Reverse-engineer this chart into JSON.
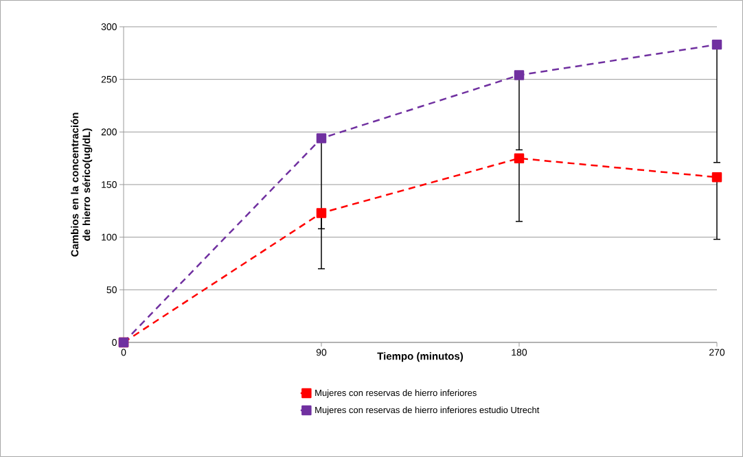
{
  "chart_data": {
    "type": "line",
    "xlabel": "Tiempo (minutos)",
    "ylabel": "Cambios en la concentración de hierro sérico(ug/dL)",
    "x": [
      0,
      90,
      180,
      270
    ],
    "xlim": [
      0,
      270
    ],
    "xticks": [
      0,
      90,
      180,
      270
    ],
    "ylim": [
      0,
      300
    ],
    "yticks": [
      0,
      50,
      100,
      150,
      200,
      250,
      300
    ],
    "grid": "y",
    "legend": "bottom",
    "marker": "square",
    "line_style": "dashed",
    "series": [
      {
        "name": "Mujeres con reservas de hierro inferiores",
        "color": "#ff0000",
        "values": [
          0,
          123,
          175,
          157
        ],
        "errors": [
          null,
          [
            70,
            123
          ],
          [
            115,
            175
          ],
          [
            98,
            157
          ]
        ]
      },
      {
        "name": "Mujeres con reservas de hierro inferiores estudio Utrecht",
        "color": "#7030a0",
        "values": [
          0,
          194,
          254,
          283
        ],
        "errors": [
          null,
          [
            108,
            194
          ],
          [
            183,
            254
          ],
          [
            171,
            283
          ]
        ]
      }
    ]
  }
}
